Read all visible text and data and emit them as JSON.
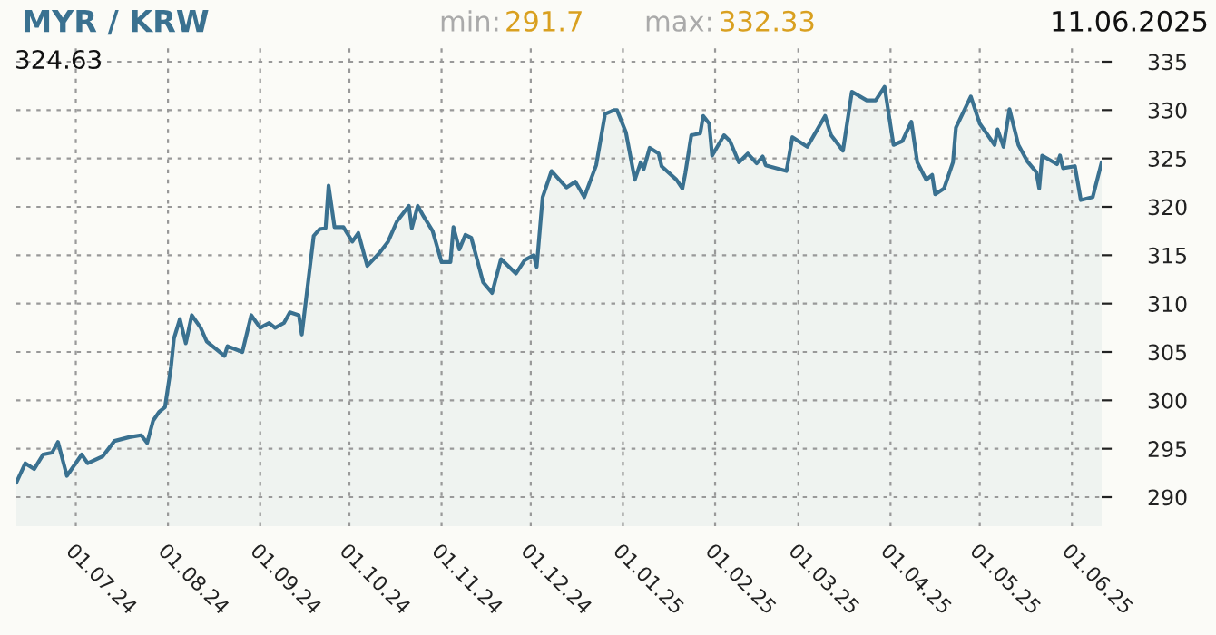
{
  "chart_data": {
    "type": "area",
    "title": "MYR / KRW",
    "annotations": [
      "min:",
      "291.7",
      "max:",
      "332.33",
      "11.06.2025",
      "324.63"
    ],
    "x": [
      "2024-06-11",
      "2024-06-14",
      "2024-06-17",
      "2024-06-20",
      "2024-06-23",
      "2024-06-25",
      "2024-06-28",
      "2024-07-03",
      "2024-07-05",
      "2024-07-10",
      "2024-07-14",
      "2024-07-19",
      "2024-07-23",
      "2024-07-25",
      "2024-07-27",
      "2024-07-29",
      "2024-07-31",
      "2024-08-02",
      "2024-08-03",
      "2024-08-05",
      "2024-08-07",
      "2024-08-09",
      "2024-08-12",
      "2024-08-14",
      "2024-08-20",
      "2024-08-21",
      "2024-08-26",
      "2024-08-29",
      "2024-09-01",
      "2024-09-04",
      "2024-09-06",
      "2024-09-09",
      "2024-09-11",
      "2024-09-14",
      "2024-09-15",
      "2024-09-19",
      "2024-09-21",
      "2024-09-23",
      "2024-09-24",
      "2024-09-26",
      "2024-09-29",
      "2024-10-02",
      "2024-10-04",
      "2024-10-07",
      "2024-10-11",
      "2024-10-14",
      "2024-10-17",
      "2024-10-21",
      "2024-10-22",
      "2024-10-24",
      "2024-10-26",
      "2024-10-29",
      "2024-11-01",
      "2024-11-04",
      "2024-11-05",
      "2024-11-07",
      "2024-11-09",
      "2024-11-11",
      "2024-11-15",
      "2024-11-18",
      "2024-11-21",
      "2024-11-26",
      "2024-11-29",
      "2024-12-02",
      "2024-12-03",
      "2024-12-05",
      "2024-12-08",
      "2024-12-13",
      "2024-12-16",
      "2024-12-19",
      "2024-12-23",
      "2024-12-26",
      "2024-12-29",
      "2024-12-30",
      "2025-01-02",
      "2025-01-05",
      "2025-01-07",
      "2025-01-08",
      "2025-01-10",
      "2025-01-13",
      "2025-01-14",
      "2025-01-19",
      "2025-01-21",
      "2025-01-22",
      "2025-01-24",
      "2025-01-27",
      "2025-01-28",
      "2025-01-30",
      "2025-01-31",
      "2025-02-04",
      "2025-02-06",
      "2025-02-09",
      "2025-02-12",
      "2025-02-15",
      "2025-02-17",
      "2025-02-18",
      "2025-02-25",
      "2025-02-27",
      "2025-03-01",
      "2025-03-04",
      "2025-03-10",
      "2025-03-12",
      "2025-03-16",
      "2025-03-19",
      "2025-03-24",
      "2025-03-27",
      "2025-03-30",
      "2025-04-02",
      "2025-04-05",
      "2025-04-08",
      "2025-04-10",
      "2025-04-13",
      "2025-04-15",
      "2025-04-16",
      "2025-04-19",
      "2025-04-22",
      "2025-04-23",
      "2025-04-28",
      "2025-05-01",
      "2025-05-06",
      "2025-05-07",
      "2025-05-09",
      "2025-05-11",
      "2025-05-14",
      "2025-05-17",
      "2025-05-20",
      "2025-05-21",
      "2025-05-22",
      "2025-05-27",
      "2025-05-28",
      "2025-05-29",
      "2025-06-02",
      "2025-06-04",
      "2025-06-08",
      "2025-06-11"
    ],
    "series": [
      {
        "color": "#3a7190",
        "values": [
          291.5,
          293.5,
          292.9,
          294.4,
          294.6,
          295.7,
          292.2,
          294.4,
          293.5,
          294.2,
          295.8,
          296.2,
          296.4,
          295.6,
          297.9,
          298.8,
          299.3,
          303.4,
          306.4,
          308.4,
          305.9,
          308.8,
          307.5,
          306.1,
          304.6,
          305.6,
          305.0,
          308.8,
          307.5,
          308.0,
          307.5,
          308.0,
          309.1,
          308.8,
          306.8,
          317.0,
          317.7,
          317.8,
          322.2,
          317.9,
          317.9,
          316.4,
          317.3,
          313.9,
          315.2,
          316.4,
          318.5,
          320.1,
          317.8,
          320.1,
          319.0,
          317.5,
          314.3,
          314.3,
          317.9,
          315.6,
          317.1,
          316.8,
          312.2,
          311.1,
          314.6,
          313.1,
          314.5,
          315.0,
          313.8,
          321.0,
          323.7,
          322.0,
          322.6,
          321.0,
          324.3,
          329.6,
          330.0,
          330.0,
          327.7,
          322.8,
          324.6,
          323.9,
          326.1,
          325.5,
          324.2,
          322.8,
          321.9,
          323.5,
          327.4,
          327.6,
          329.4,
          328.6,
          325.3,
          327.4,
          326.8,
          324.6,
          325.5,
          324.5,
          325.2,
          324.3,
          323.7,
          327.2,
          326.8,
          326.2,
          329.4,
          327.4,
          325.8,
          331.9,
          331.0,
          331.0,
          332.4,
          326.4,
          326.8,
          328.8,
          324.6,
          322.8,
          323.3,
          321.3,
          321.9,
          324.6,
          328.2,
          331.4,
          328.6,
          326.4,
          328.0,
          326.2,
          330.1,
          326.4,
          324.7,
          323.6,
          321.9,
          325.3,
          324.4,
          325.3,
          324.0,
          324.2,
          320.7,
          321.0,
          324.6
        ]
      }
    ],
    "xlim": [
      "2024-06-11",
      "2025-06-11"
    ],
    "xticks": [
      {
        "value": "2024-07-01",
        "label": "01.07.24"
      },
      {
        "value": "2024-08-01",
        "label": "01.08.24"
      },
      {
        "value": "2024-09-01",
        "label": "01.09.24"
      },
      {
        "value": "2024-10-01",
        "label": "01.10.24"
      },
      {
        "value": "2024-11-01",
        "label": "01.11.24"
      },
      {
        "value": "2024-12-01",
        "label": "01.12.24"
      },
      {
        "value": "2025-01-01",
        "label": "01.01.25"
      },
      {
        "value": "2025-02-01",
        "label": "01.02.25"
      },
      {
        "value": "2025-03-01",
        "label": "01.03.25"
      },
      {
        "value": "2025-04-01",
        "label": "01.04.25"
      },
      {
        "value": "2025-05-01",
        "label": "01.05.25"
      },
      {
        "value": "2025-06-01",
        "label": "01.06.25"
      }
    ],
    "ylim": [
      287,
      336.5
    ],
    "yticks": [
      290,
      295,
      300,
      305,
      310,
      315,
      320,
      325,
      330,
      335
    ],
    "grid": true,
    "line_style": "solid"
  }
}
